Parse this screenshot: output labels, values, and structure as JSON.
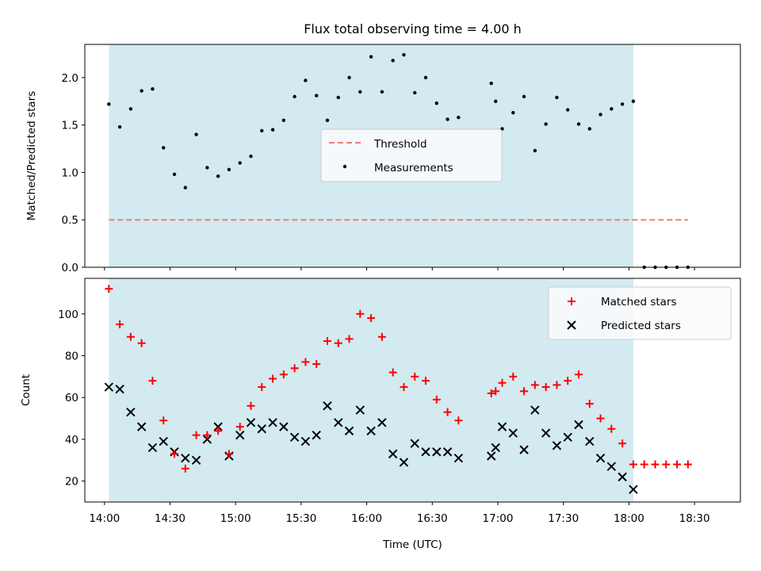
{
  "chart_data": [
    {
      "type": "scatter",
      "title": "Flux total observing time = 4.00 h",
      "ylabel": "Matched/Predicted stars",
      "xlabel": "",
      "ylim": [
        0,
        2.35
      ],
      "yticks": [
        "0.0",
        "0.5",
        "1.0",
        "1.5",
        "2.0"
      ],
      "grid": false,
      "legend_position": "center",
      "shaded_interval": {
        "start": "14:02",
        "end": "18:02",
        "color": "#d3eaf1"
      },
      "threshold": {
        "name": "Threshold",
        "value": 0.5,
        "x_start": "14:02",
        "x_end": "18:27",
        "color": "#f47a7a",
        "style": "dashed"
      },
      "series": [
        {
          "name": "Measurements",
          "color": "#000000",
          "x": [
            "14:02",
            "14:07",
            "14:12",
            "14:17",
            "14:22",
            "14:27",
            "14:32",
            "14:37",
            "14:42",
            "14:47",
            "14:52",
            "14:57",
            "15:02",
            "15:07",
            "15:12",
            "15:17",
            "15:22",
            "15:27",
            "15:32",
            "15:37",
            "15:42",
            "15:47",
            "15:52",
            "15:57",
            "16:02",
            "16:07",
            "16:12",
            "16:17",
            "16:22",
            "16:27",
            "16:32",
            "16:37",
            "16:42",
            "16:57",
            "16:59",
            "17:02",
            "17:07",
            "17:12",
            "17:17",
            "17:22",
            "17:27",
            "17:32",
            "17:37",
            "17:42",
            "17:47",
            "17:52",
            "17:57",
            "18:02",
            "18:07",
            "18:12",
            "18:17",
            "18:22",
            "18:27"
          ],
          "y": [
            1.72,
            1.48,
            1.67,
            1.86,
            1.88,
            1.26,
            0.98,
            0.84,
            1.4,
            1.05,
            0.96,
            1.03,
            1.1,
            1.17,
            1.44,
            1.45,
            1.55,
            1.8,
            1.97,
            1.81,
            1.55,
            1.79,
            2.0,
            1.85,
            2.22,
            1.85,
            2.18,
            2.24,
            1.84,
            2.0,
            1.73,
            1.56,
            1.58,
            1.94,
            1.75,
            1.46,
            1.63,
            1.8,
            1.23,
            1.51,
            1.79,
            1.66,
            1.51,
            1.46,
            1.61,
            1.67,
            1.72,
            1.75,
            0.0,
            0.0,
            0.0,
            0.0,
            0.0
          ]
        }
      ]
    },
    {
      "type": "scatter",
      "title": "",
      "ylabel": "Count",
      "xlabel": "Time (UTC)",
      "ylim": [
        10,
        117
      ],
      "yticks": [
        "20",
        "40",
        "60",
        "80",
        "100"
      ],
      "xlim": [
        "13:51",
        "18:51"
      ],
      "xticks": [
        "14:00",
        "14:30",
        "15:00",
        "15:30",
        "16:00",
        "16:30",
        "17:00",
        "17:30",
        "18:00",
        "18:30"
      ],
      "grid": false,
      "legend_position": "upper right",
      "shaded_interval": {
        "start": "14:02",
        "end": "18:02",
        "color": "#d3eaf1"
      },
      "series": [
        {
          "name": "Matched stars",
          "marker": "plus",
          "color": "#ff0000",
          "x": [
            "14:02",
            "14:07",
            "14:12",
            "14:17",
            "14:22",
            "14:27",
            "14:32",
            "14:37",
            "14:42",
            "14:47",
            "14:52",
            "14:57",
            "15:02",
            "15:07",
            "15:12",
            "15:17",
            "15:22",
            "15:27",
            "15:32",
            "15:37",
            "15:42",
            "15:47",
            "15:52",
            "15:57",
            "16:02",
            "16:07",
            "16:12",
            "16:17",
            "16:22",
            "16:27",
            "16:32",
            "16:37",
            "16:42",
            "16:57",
            "16:59",
            "17:02",
            "17:07",
            "17:12",
            "17:17",
            "17:22",
            "17:27",
            "17:32",
            "17:37",
            "17:42",
            "17:47",
            "17:52",
            "17:57",
            "18:02",
            "18:07",
            "18:12",
            "18:17",
            "18:22",
            "18:27"
          ],
          "y": [
            112,
            95,
            89,
            86,
            68,
            49,
            33,
            26,
            42,
            42,
            44,
            33,
            46,
            56,
            65,
            69,
            71,
            74,
            77,
            76,
            87,
            86,
            88,
            100,
            98,
            89,
            72,
            65,
            70,
            68,
            59,
            53,
            49,
            62,
            63,
            67,
            70,
            63,
            66,
            65,
            66,
            68,
            71,
            57,
            50,
            45,
            38,
            28,
            28,
            28,
            28,
            28,
            28
          ]
        },
        {
          "name": "Predicted stars",
          "marker": "x",
          "color": "#000000",
          "x": [
            "14:02",
            "14:07",
            "14:12",
            "14:17",
            "14:22",
            "14:27",
            "14:32",
            "14:37",
            "14:42",
            "14:47",
            "14:52",
            "14:57",
            "15:02",
            "15:07",
            "15:12",
            "15:17",
            "15:22",
            "15:27",
            "15:32",
            "15:37",
            "15:42",
            "15:47",
            "15:52",
            "15:57",
            "16:02",
            "16:07",
            "16:12",
            "16:17",
            "16:22",
            "16:27",
            "16:32",
            "16:37",
            "16:42",
            "16:57",
            "16:59",
            "17:02",
            "17:07",
            "17:12",
            "17:17",
            "17:22",
            "17:27",
            "17:32",
            "17:37",
            "17:42",
            "17:47",
            "17:52",
            "17:57",
            "18:02"
          ],
          "y": [
            65,
            64,
            53,
            46,
            36,
            39,
            34,
            31,
            30,
            40,
            46,
            32,
            42,
            48,
            45,
            48,
            46,
            41,
            39,
            42,
            56,
            48,
            44,
            54,
            44,
            48,
            33,
            29,
            38,
            34,
            34,
            34,
            31,
            32,
            36,
            46,
            43,
            35,
            54,
            43,
            37,
            41,
            47,
            39,
            31,
            27,
            22,
            16
          ]
        }
      ]
    }
  ]
}
